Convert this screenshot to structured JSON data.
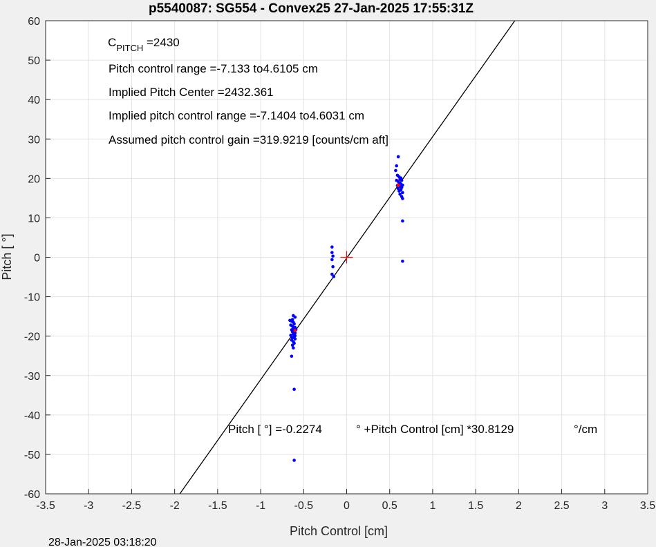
{
  "chart_data": {
    "type": "scatter",
    "title": "p5540087: SG554 - Convex25 27-Jan-2025 17:55:31Z",
    "xlabel": "Pitch Control [cm]",
    "ylabel": "Pitch [  °]",
    "xlim": [
      -3.5,
      3.5
    ],
    "ylim": [
      -60,
      60
    ],
    "xticks": [
      -3.5,
      -3,
      -2.5,
      -2,
      -1.5,
      -1,
      -0.5,
      0,
      0.5,
      1,
      1.5,
      2,
      2.5,
      3,
      3.5
    ],
    "xtick_labels": [
      "-3.5",
      "-3",
      "-2.5",
      "-2",
      "-1.5",
      "-1",
      "-0.5",
      "0",
      "0.5",
      "1",
      "1.5",
      "2",
      "2.5",
      "3",
      "3.5"
    ],
    "yticks": [
      -60,
      -50,
      -40,
      -30,
      -20,
      -10,
      0,
      10,
      20,
      30,
      40,
      50,
      60
    ],
    "ytick_labels": [
      "-60",
      "-50",
      "-40",
      "-30",
      "-20",
      "-10",
      "0",
      "10",
      "20",
      "30",
      "40",
      "50",
      "60"
    ],
    "grid": true,
    "fit_line": {
      "intercept": -0.2274,
      "slope": 30.8129,
      "color": "#000000"
    },
    "center_marker": {
      "x": 0,
      "y": 0,
      "color": "#ff0000"
    },
    "points_color": "#0000ff",
    "highlight_color": "#ff0000",
    "points": [
      [
        -0.62,
        -14.8
      ],
      [
        -0.6,
        -15.2
      ],
      [
        -0.63,
        -15.8
      ],
      [
        -0.64,
        -16.2
      ],
      [
        -0.62,
        -16.5
      ],
      [
        -0.61,
        -16.9
      ],
      [
        -0.65,
        -17.2
      ],
      [
        -0.63,
        -17.5
      ],
      [
        -0.6,
        -17.8
      ],
      [
        -0.62,
        -18.1
      ],
      [
        -0.64,
        -18.4
      ],
      [
        -0.61,
        -18.6
      ],
      [
        -0.63,
        -18.9
      ],
      [
        -0.6,
        -19.2
      ],
      [
        -0.62,
        -19.5
      ],
      [
        -0.65,
        -19.8
      ],
      [
        -0.61,
        -20.1
      ],
      [
        -0.63,
        -20.4
      ],
      [
        -0.6,
        -20.7
      ],
      [
        -0.64,
        -21.0
      ],
      [
        -0.62,
        -21.4
      ],
      [
        -0.61,
        -21.8
      ],
      [
        -0.63,
        -22.3
      ],
      [
        -0.62,
        -23.0
      ],
      [
        -0.64,
        -25.1
      ],
      [
        -0.61,
        -33.5
      ],
      [
        -0.61,
        -51.5
      ],
      [
        -0.66,
        -16.0
      ],
      [
        -0.59,
        -18.3
      ],
      [
        -0.6,
        -19.9
      ],
      [
        -0.17,
        2.6
      ],
      [
        -0.17,
        1.2
      ],
      [
        -0.16,
        0.3
      ],
      [
        -0.17,
        -0.6
      ],
      [
        -0.16,
        -2.4
      ],
      [
        -0.17,
        -4.3
      ],
      [
        -0.15,
        -4.9
      ],
      [
        0.58,
        23.2
      ],
      [
        0.6,
        25.5
      ],
      [
        0.57,
        22.0
      ],
      [
        0.59,
        20.8
      ],
      [
        0.61,
        20.4
      ],
      [
        0.63,
        20.1
      ],
      [
        0.62,
        19.8
      ],
      [
        0.64,
        19.5
      ],
      [
        0.6,
        19.2
      ],
      [
        0.61,
        18.9
      ],
      [
        0.63,
        18.6
      ],
      [
        0.65,
        18.3
      ],
      [
        0.62,
        18.0
      ],
      [
        0.64,
        17.7
      ],
      [
        0.6,
        17.4
      ],
      [
        0.63,
        17.1
      ],
      [
        0.61,
        16.8
      ],
      [
        0.65,
        16.4
      ],
      [
        0.62,
        16.0
      ],
      [
        0.64,
        15.4
      ],
      [
        0.65,
        14.9
      ],
      [
        0.65,
        9.2
      ],
      [
        0.65,
        -1.0
      ],
      [
        0.58,
        19.5
      ],
      [
        0.59,
        18.2
      ]
    ],
    "highlight_points": [
      [
        -0.6,
        -18.6
      ],
      [
        0.6,
        18.3
      ]
    ],
    "annotations": {
      "cpitch_main": "C",
      "cpitch_sub": "PITCH",
      "cpitch_value": " =2430",
      "line2": "Pitch control range =-7.133 to4.6105 cm",
      "line3": "Implied Pitch Center =2432.361",
      "line4": "Implied pitch control range =-7.1404 to4.6031 cm",
      "line5": "Assumed pitch control gain =319.9219 [counts/cm aft]",
      "eq_part1": "Pitch [  °] =-0.2274",
      "eq_part2": "° +Pitch Control [cm] *30.8129",
      "eq_part3": "°/cm"
    },
    "footer": "28-Jan-2025 03:18:20"
  }
}
